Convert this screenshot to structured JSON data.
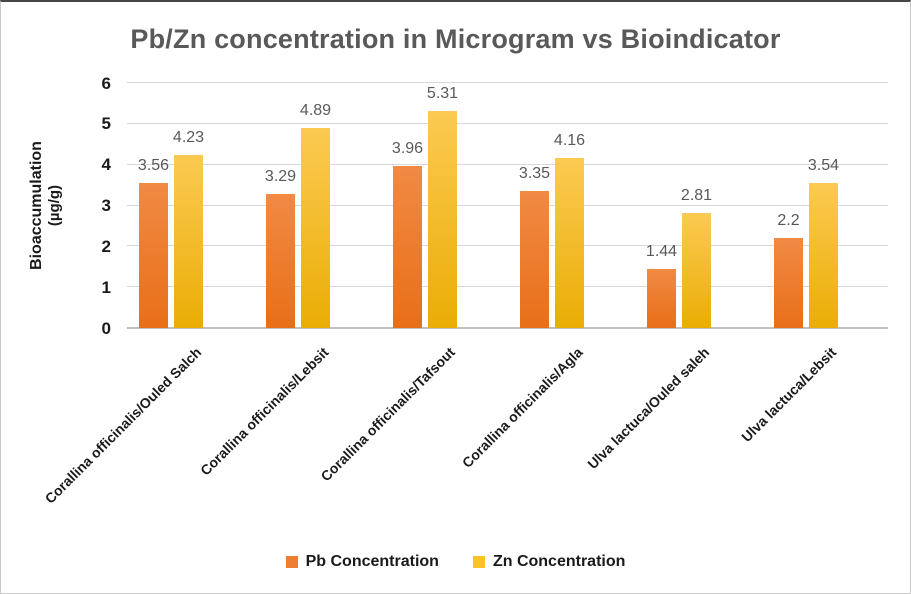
{
  "chart_data": {
    "type": "bar",
    "title": "Pb/Zn concentration in Microgram vs Bioindicator",
    "title_color": "#595959",
    "ylabel": "Bioaccumulation",
    "ylabel_unit": "(µg/g)",
    "xlabel": "",
    "ylim": [
      0,
      6
    ],
    "yticks": [
      0,
      1,
      2,
      3,
      4,
      5,
      6
    ],
    "grid": true,
    "legend_position": "bottom",
    "value_label_color": "#595959",
    "axis_text_color": "#1a1a1a",
    "gridline_color": "#d9d9d9",
    "categories": [
      "Corallina officinalis/Ouled Salch",
      "Corallina officinalis/Lebsit",
      "Corallina officinalis/Tafsout",
      "Corallina officinalis/Agla",
      "Ulva lactuca/Ouled saleh",
      "Ulva lactuca/Lebsit"
    ],
    "series": [
      {
        "name": "Pb Concentration",
        "color": "#ED7D31",
        "gradient_top": "#F18A44",
        "gradient_bottom": "#E86F18",
        "values": [
          3.56,
          3.29,
          3.96,
          3.35,
          1.44,
          2.2
        ]
      },
      {
        "name": "Zn Concentration",
        "color": "#FCC229",
        "gradient_top": "#FCCA52",
        "gradient_bottom": "#EAAD05",
        "values": [
          4.23,
          4.89,
          5.31,
          4.16,
          2.81,
          3.54
        ]
      }
    ]
  }
}
